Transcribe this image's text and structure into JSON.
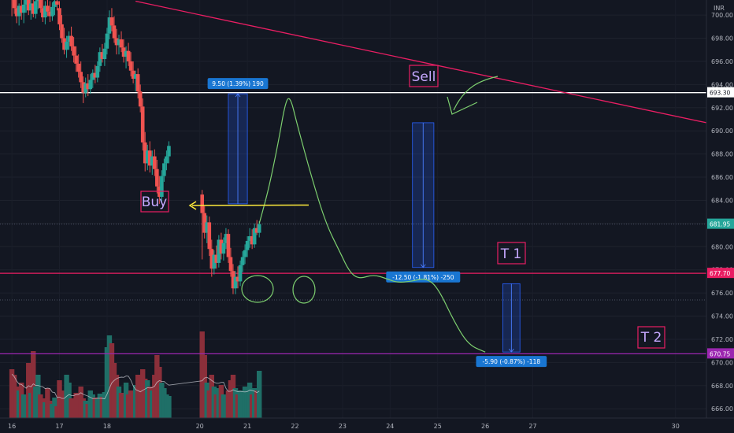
{
  "chart_data": {
    "type": "candlestick",
    "currency": "INR",
    "colors": {
      "background": "#131722",
      "up": "#26a69a",
      "down": "#ef5350",
      "trendline": "#e91e63",
      "resistance": "#ffffff",
      "support": "#e91e63",
      "target2": "#9c27b0",
      "forecast": "#7dcf6f",
      "buy_arrow": "#ffeb3b",
      "measure": "#2962ff",
      "last_price": "#26a69a"
    },
    "y_axis": {
      "min": 665.2,
      "max": 701.3,
      "ticks": [
        666.0,
        668.0,
        670.0,
        672.0,
        674.0,
        676.0,
        678.0,
        680.0,
        682.0,
        684.0,
        686.0,
        688.0,
        690.0,
        692.0,
        694.0,
        696.0,
        698.0,
        700.0
      ]
    },
    "x_axis": {
      "min": 15.75,
      "max": 30.6,
      "ticks": [
        "16",
        "17",
        "18",
        "20",
        "21",
        "22",
        "23",
        "24",
        "25",
        "26",
        "27",
        "30"
      ]
    },
    "price_labels": [
      {
        "value": 693.3,
        "text": "693.30",
        "kind": "resistance"
      },
      {
        "value": 681.95,
        "text": "681.95",
        "kind": "last"
      },
      {
        "value": 677.7,
        "text": "677.70",
        "kind": "support"
      },
      {
        "value": 670.75,
        "text": "670.75",
        "kind": "target2"
      }
    ],
    "candles": [
      [
        16.0,
        702.5,
        703.8,
        699.9,
        701.8
      ],
      [
        16.05,
        701.8,
        702.8,
        700.1,
        700.6
      ],
      [
        16.1,
        700.6,
        701.4,
        699.3,
        699.9
      ],
      [
        16.15,
        699.9,
        701.0,
        699.1,
        700.8
      ],
      [
        16.2,
        700.8,
        701.7,
        699.6,
        700.2
      ],
      [
        16.25,
        700.2,
        701.3,
        699.3,
        700.9
      ],
      [
        16.3,
        700.9,
        702.0,
        700.2,
        701.5
      ],
      [
        16.35,
        701.5,
        702.2,
        700.0,
        700.4
      ],
      [
        16.4,
        700.4,
        701.4,
        699.6,
        701.0
      ],
      [
        16.45,
        701.0,
        701.8,
        699.8,
        700.1
      ],
      [
        16.5,
        700.1,
        701.6,
        699.7,
        701.2
      ],
      [
        16.55,
        701.2,
        702.3,
        700.5,
        701.7
      ],
      [
        16.6,
        701.7,
        702.4,
        700.2,
        700.6
      ],
      [
        16.65,
        700.6,
        701.4,
        699.4,
        699.8
      ],
      [
        16.7,
        699.8,
        701.2,
        699.2,
        700.8
      ],
      [
        16.75,
        700.8,
        701.6,
        699.9,
        700.3
      ],
      [
        16.8,
        700.3,
        701.2,
        699.4,
        699.9
      ],
      [
        16.85,
        699.9,
        701.1,
        699.5,
        700.7
      ],
      [
        16.9,
        700.7,
        701.6,
        700.0,
        701.2
      ],
      [
        16.95,
        701.2,
        702.1,
        700.4,
        700.9
      ],
      [
        17.0,
        700.6,
        701.2,
        698.7,
        699.2
      ],
      [
        17.05,
        699.2,
        700.0,
        697.6,
        698.0
      ],
      [
        17.1,
        698.0,
        698.9,
        696.6,
        697.0
      ],
      [
        17.15,
        697.0,
        698.2,
        696.3,
        697.7
      ],
      [
        17.2,
        697.7,
        698.6,
        697.0,
        698.2
      ],
      [
        17.25,
        698.2,
        699.0,
        696.9,
        697.3
      ],
      [
        17.3,
        697.3,
        698.1,
        695.9,
        696.5
      ],
      [
        17.35,
        696.5,
        697.3,
        695.1,
        695.8
      ],
      [
        17.4,
        695.8,
        696.6,
        694.6,
        695.1
      ],
      [
        17.45,
        695.1,
        696.0,
        693.7,
        694.2
      ],
      [
        17.5,
        694.2,
        694.7,
        692.4,
        693.3
      ],
      [
        17.55,
        693.3,
        694.6,
        692.9,
        694.1
      ],
      [
        17.6,
        694.1,
        694.9,
        693.0,
        693.6
      ],
      [
        17.65,
        693.6,
        694.9,
        693.2,
        694.4
      ],
      [
        17.7,
        694.4,
        695.3,
        693.7,
        695.0
      ],
      [
        17.75,
        695.0,
        695.7,
        694.1,
        694.6
      ],
      [
        17.8,
        694.6,
        696.0,
        694.2,
        695.6
      ],
      [
        17.85,
        695.6,
        697.2,
        695.1,
        696.8
      ],
      [
        17.9,
        696.8,
        697.5,
        695.9,
        696.2
      ],
      [
        17.95,
        696.2,
        697.6,
        695.6,
        697.1
      ],
      [
        18.0,
        697.1,
        698.9,
        696.6,
        698.4
      ],
      [
        18.05,
        698.4,
        700.4,
        697.9,
        699.8
      ],
      [
        18.1,
        699.8,
        700.6,
        698.6,
        699.1
      ],
      [
        18.15,
        699.1,
        699.9,
        697.6,
        698.0
      ],
      [
        18.2,
        698.0,
        698.8,
        696.6,
        697.4
      ],
      [
        18.25,
        697.4,
        698.3,
        696.6,
        697.9
      ],
      [
        18.3,
        697.9,
        698.6,
        696.8,
        697.2
      ],
      [
        18.35,
        697.2,
        697.9,
        695.9,
        696.4
      ],
      [
        18.4,
        696.4,
        697.3,
        695.4,
        696.9
      ],
      [
        18.45,
        696.9,
        697.6,
        695.6,
        696.0
      ],
      [
        18.5,
        696.0,
        696.8,
        694.7,
        695.2
      ],
      [
        18.55,
        695.2,
        696.0,
        694.1,
        694.5
      ],
      [
        18.6,
        694.5,
        695.2,
        693.4,
        694.9
      ],
      [
        18.65,
        694.9,
        695.4,
        692.8,
        693.4
      ],
      [
        18.7,
        693.4,
        694.0,
        691.6,
        692.1
      ],
      [
        18.75,
        692.1,
        692.8,
        688.3,
        689.0
      ],
      [
        18.8,
        689.0,
        689.9,
        686.5,
        687.2
      ],
      [
        18.85,
        687.2,
        688.8,
        686.6,
        688.3
      ],
      [
        18.9,
        688.3,
        689.1,
        686.4,
        687.0
      ],
      [
        18.95,
        687.0,
        688.3,
        686.2,
        687.8
      ],
      [
        19.0,
        687.8,
        688.4,
        686.1,
        686.7
      ],
      [
        19.05,
        686.7,
        687.5,
        684.6,
        685.2
      ],
      [
        19.1,
        685.2,
        686.1,
        683.7,
        684.3
      ],
      [
        19.15,
        684.3,
        686.6,
        683.9,
        686.1
      ],
      [
        19.2,
        686.1,
        687.6,
        685.6,
        687.2
      ],
      [
        19.25,
        687.2,
        688.3,
        686.6,
        687.8
      ],
      [
        19.3,
        687.8,
        689.1,
        687.2,
        688.7
      ],
      [
        20.0,
        684.5,
        684.9,
        678.9,
        682.9
      ],
      [
        20.05,
        682.9,
        683.5,
        680.7,
        681.2
      ],
      [
        20.1,
        681.2,
        682.7,
        680.3,
        682.1
      ],
      [
        20.15,
        682.1,
        682.6,
        679.2,
        679.8
      ],
      [
        20.2,
        679.8,
        680.6,
        677.4,
        678.1
      ],
      [
        20.25,
        678.1,
        679.7,
        677.6,
        679.3
      ],
      [
        20.3,
        679.3,
        680.1,
        678.1,
        678.6
      ],
      [
        20.35,
        678.6,
        681.0,
        678.2,
        680.6
      ],
      [
        20.4,
        680.6,
        681.2,
        678.9,
        679.4
      ],
      [
        20.45,
        679.4,
        680.8,
        678.8,
        680.3
      ],
      [
        20.5,
        680.3,
        681.6,
        679.8,
        681.1
      ],
      [
        20.55,
        681.1,
        681.5,
        678.6,
        679.1
      ],
      [
        20.6,
        679.1,
        679.9,
        677.4,
        677.9
      ],
      [
        20.65,
        677.9,
        678.5,
        675.9,
        676.4
      ],
      [
        20.7,
        676.4,
        677.9,
        675.9,
        677.4
      ],
      [
        20.75,
        677.4,
        678.3,
        676.4,
        677.0
      ],
      [
        20.8,
        677.0,
        678.8,
        676.6,
        678.4
      ],
      [
        20.85,
        678.4,
        679.6,
        677.8,
        679.1
      ],
      [
        20.9,
        679.1,
        680.2,
        678.5,
        679.7
      ],
      [
        20.95,
        679.7,
        680.9,
        679.1,
        680.5
      ],
      [
        21.0,
        680.5,
        681.6,
        679.9,
        680.9
      ],
      [
        21.05,
        680.9,
        681.5,
        679.8,
        680.2
      ],
      [
        21.1,
        680.2,
        682.0,
        679.9,
        681.6
      ],
      [
        21.15,
        681.6,
        682.3,
        681.0,
        681.2
      ],
      [
        21.2,
        681.2,
        682.2,
        680.8,
        681.95
      ]
    ],
    "volume_bars": [
      [
        16.0,
        0.62
      ],
      [
        16.05,
        0.55
      ],
      [
        16.1,
        0.4
      ],
      [
        16.15,
        0.35
      ],
      [
        16.2,
        0.45
      ],
      [
        16.25,
        0.3
      ],
      [
        16.3,
        0.28
      ],
      [
        16.35,
        0.7
      ],
      [
        16.4,
        0.32
      ],
      [
        16.45,
        0.85
      ],
      [
        16.5,
        0.4
      ],
      [
        16.55,
        0.55
      ],
      [
        16.6,
        0.3
      ],
      [
        16.65,
        0.25
      ],
      [
        16.7,
        0.2
      ],
      [
        16.75,
        0.38
      ],
      [
        16.8,
        0.22
      ],
      [
        16.85,
        0.18
      ],
      [
        16.9,
        0.26
      ],
      [
        16.95,
        0.15
      ],
      [
        17.0,
        0.48
      ],
      [
        17.05,
        0.35
      ],
      [
        17.1,
        0.3
      ],
      [
        17.15,
        0.55
      ],
      [
        17.2,
        0.45
      ],
      [
        17.25,
        0.25
      ],
      [
        17.3,
        0.2
      ],
      [
        17.35,
        0.32
      ],
      [
        17.4,
        0.28
      ],
      [
        17.45,
        0.4
      ],
      [
        17.5,
        0.25
      ],
      [
        17.55,
        0.22
      ],
      [
        17.6,
        0.18
      ],
      [
        17.65,
        0.35
      ],
      [
        17.7,
        0.3
      ],
      [
        17.75,
        0.26
      ],
      [
        17.8,
        0.24
      ],
      [
        17.85,
        0.31
      ],
      [
        17.9,
        0.27
      ],
      [
        17.95,
        0.33
      ],
      [
        18.0,
        0.9
      ],
      [
        18.05,
        1.05
      ],
      [
        18.1,
        0.95
      ],
      [
        18.15,
        0.7
      ],
      [
        18.2,
        0.55
      ],
      [
        18.25,
        0.4
      ],
      [
        18.3,
        0.32
      ],
      [
        18.35,
        0.28
      ],
      [
        18.4,
        0.45
      ],
      [
        18.45,
        0.3
      ],
      [
        18.5,
        0.35
      ],
      [
        18.55,
        0.25
      ],
      [
        18.6,
        0.42
      ],
      [
        18.65,
        0.55
      ],
      [
        18.7,
        0.38
      ],
      [
        18.75,
        0.62
      ],
      [
        18.8,
        0.5
      ],
      [
        18.85,
        0.48
      ],
      [
        18.9,
        0.4
      ],
      [
        18.95,
        0.35
      ],
      [
        19.0,
        0.55
      ],
      [
        19.05,
        0.8
      ],
      [
        19.1,
        0.65
      ],
      [
        19.15,
        0.45
      ],
      [
        19.2,
        0.38
      ],
      [
        19.25,
        0.3
      ],
      [
        19.3,
        0.28
      ],
      [
        20.0,
        1.1
      ],
      [
        20.05,
        0.8
      ],
      [
        20.1,
        0.45
      ],
      [
        20.15,
        0.35
      ],
      [
        20.2,
        0.55
      ],
      [
        20.25,
        0.4
      ],
      [
        20.3,
        0.3
      ],
      [
        20.35,
        0.38
      ],
      [
        20.4,
        0.42
      ],
      [
        20.45,
        0.3
      ],
      [
        20.5,
        0.26
      ],
      [
        20.55,
        0.35
      ],
      [
        20.6,
        0.48
      ],
      [
        20.65,
        0.55
      ],
      [
        20.7,
        0.38
      ],
      [
        20.75,
        0.3
      ],
      [
        20.8,
        0.35
      ],
      [
        20.85,
        0.32
      ],
      [
        20.9,
        0.4
      ],
      [
        20.95,
        0.36
      ],
      [
        21.0,
        0.45
      ],
      [
        21.05,
        0.3
      ],
      [
        21.1,
        0.38
      ],
      [
        21.15,
        0.35
      ],
      [
        21.2,
        0.6
      ]
    ],
    "lines": [
      {
        "name": "downtrend",
        "x1": 18.6,
        "y1": 701.2,
        "x2": 30.6,
        "y2": 690.7,
        "kind": "trendline"
      },
      {
        "name": "resistance",
        "value": 693.3,
        "kind": "resistance"
      },
      {
        "name": "support",
        "value": 677.7,
        "kind": "support"
      },
      {
        "name": "target2",
        "value": 670.75,
        "kind": "target2"
      },
      {
        "name": "dotted-1",
        "value": 681.95,
        "kind": "dotted"
      },
      {
        "name": "dotted-2",
        "value": 675.4,
        "kind": "dotted"
      }
    ],
    "measures": [
      {
        "x_from": 20.55,
        "x_to": 20.95,
        "y_from": 683.7,
        "y_to": 693.2,
        "label": "9.50 (1.39%) 190",
        "direction": "up"
      },
      {
        "x_from": 24.42,
        "x_to": 24.87,
        "y_from": 690.7,
        "y_to": 678.2,
        "label": "-12.50 (-1.81%) -250",
        "direction": "down"
      },
      {
        "x_from": 26.32,
        "x_to": 26.68,
        "y_from": 676.8,
        "y_to": 670.9,
        "label": "-5.90 (-0.87%) -118",
        "direction": "down"
      }
    ],
    "annotations": {
      "buy": "Buy",
      "sell": "Sell",
      "t1": "T 1",
      "t2": "T 2"
    },
    "forecast_path": [
      [
        21.2,
        682.0
      ],
      [
        21.4,
        685.0
      ],
      [
        21.6,
        689.0
      ],
      [
        21.75,
        692.5
      ],
      [
        21.85,
        693.0
      ],
      [
        22.0,
        690.5
      ],
      [
        22.3,
        686.0
      ],
      [
        22.6,
        682.0
      ],
      [
        22.9,
        679.5
      ],
      [
        23.1,
        677.8
      ],
      [
        23.3,
        677.2
      ],
      [
        23.6,
        677.6
      ],
      [
        23.9,
        677.2
      ],
      [
        24.1,
        676.9
      ],
      [
        24.4,
        677.0
      ],
      [
        24.7,
        677.3
      ],
      [
        24.95,
        676.5
      ],
      [
        25.3,
        673.5
      ],
      [
        25.6,
        671.5
      ],
      [
        25.95,
        670.9
      ]
    ]
  }
}
